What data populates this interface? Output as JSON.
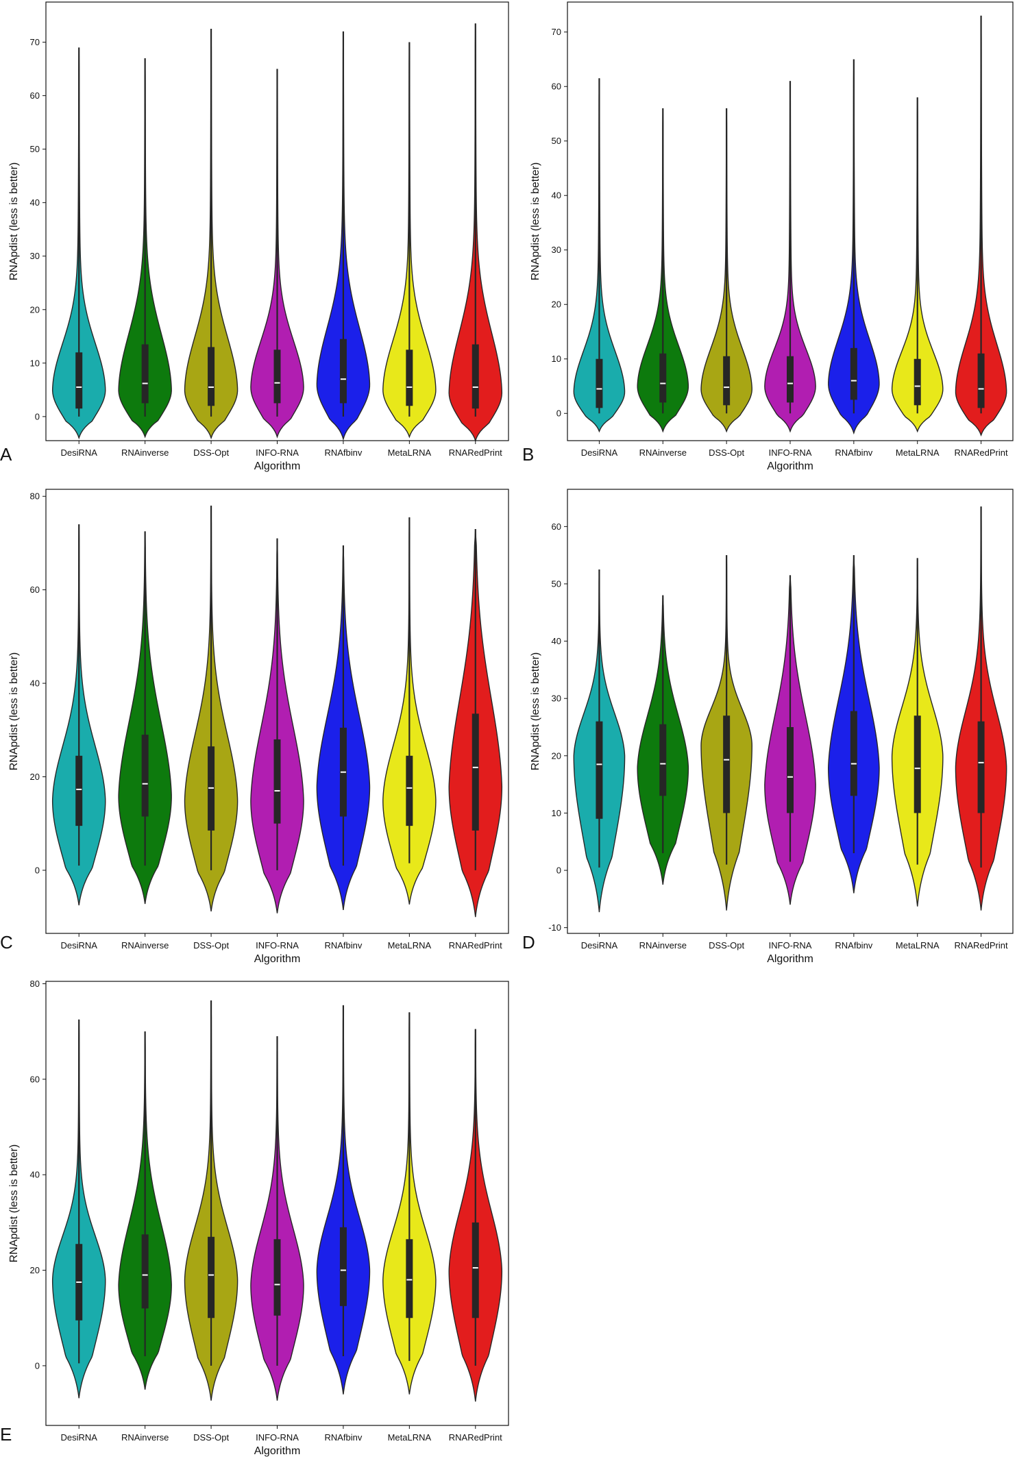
{
  "chart_data": [
    {
      "type": "violin",
      "panel_label": "A",
      "xlabel": "Algorithm",
      "ylabel": "RNApdist (less is better)",
      "ylim": [
        -4.5,
        77.5
      ],
      "yticks": [
        0,
        10,
        20,
        30,
        40,
        50,
        60,
        70
      ],
      "grid": false,
      "categories": [
        "DesiRNA",
        "RNAinverse",
        "DSS-Opt",
        "INFO-RNA",
        "RNAfbinv",
        "MetaLRNA",
        "RNARedPrint"
      ],
      "colors": [
        "#1aacac",
        "#0d7a0d",
        "#a8a614",
        "#b11eb1",
        "#1b20ea",
        "#e8e81a",
        "#e21d1d"
      ],
      "violins": [
        {
          "min": -4.0,
          "max": 69.0,
          "mode": 5.0,
          "q1": 1.5,
          "median": 5.5,
          "q3": 12.0,
          "whisker_low": 0.0,
          "whisker_high": 69.0
        },
        {
          "min": -3.8,
          "max": 67.0,
          "mode": 5.0,
          "q1": 2.5,
          "median": 6.2,
          "q3": 13.5,
          "whisker_low": 0.0,
          "whisker_high": 67.0
        },
        {
          "min": -4.0,
          "max": 72.5,
          "mode": 5.0,
          "q1": 2.0,
          "median": 5.5,
          "q3": 13.0,
          "whisker_low": 0.0,
          "whisker_high": 72.5
        },
        {
          "min": -3.8,
          "max": 65.0,
          "mode": 5.5,
          "q1": 2.5,
          "median": 6.3,
          "q3": 12.5,
          "whisker_low": 0.0,
          "whisker_high": 65.0
        },
        {
          "min": -4.2,
          "max": 72.0,
          "mode": 6.0,
          "q1": 2.5,
          "median": 7.0,
          "q3": 14.5,
          "whisker_low": 0.0,
          "whisker_high": 72.0
        },
        {
          "min": -3.8,
          "max": 70.0,
          "mode": 5.0,
          "q1": 2.0,
          "median": 5.5,
          "q3": 12.5,
          "whisker_low": 0.0,
          "whisker_high": 70.0
        },
        {
          "min": -4.5,
          "max": 73.5,
          "mode": 4.5,
          "q1": 1.5,
          "median": 5.5,
          "q3": 13.5,
          "whisker_low": 0.0,
          "whisker_high": 73.5
        }
      ]
    },
    {
      "type": "violin",
      "panel_label": "B",
      "xlabel": "Algorithm",
      "ylabel": "RNApdist (less is better)",
      "ylim": [
        -5.0,
        75.5
      ],
      "yticks": [
        0,
        10,
        20,
        30,
        40,
        50,
        60,
        70
      ],
      "grid": false,
      "categories": [
        "DesiRNA",
        "RNAinverse",
        "DSS-Opt",
        "INFO-RNA",
        "RNAfbinv",
        "MetaLRNA",
        "RNARedPrint"
      ],
      "colors": [
        "#1aacac",
        "#0d7a0d",
        "#a8a614",
        "#b11eb1",
        "#1b20ea",
        "#e8e81a",
        "#e21d1d"
      ],
      "violins": [
        {
          "min": -3.3,
          "max": 61.5,
          "mode": 4.0,
          "q1": 1.0,
          "median": 4.5,
          "q3": 10.0,
          "whisker_low": 0.0,
          "whisker_high": 61.5
        },
        {
          "min": -3.3,
          "max": 56.0,
          "mode": 5.0,
          "q1": 2.0,
          "median": 5.5,
          "q3": 11.0,
          "whisker_low": 0.0,
          "whisker_high": 56.0
        },
        {
          "min": -3.3,
          "max": 56.0,
          "mode": 4.5,
          "q1": 1.5,
          "median": 4.8,
          "q3": 10.5,
          "whisker_low": 0.0,
          "whisker_high": 56.0
        },
        {
          "min": -3.3,
          "max": 61.0,
          "mode": 5.0,
          "q1": 2.0,
          "median": 5.5,
          "q3": 10.5,
          "whisker_low": 0.0,
          "whisker_high": 61.0
        },
        {
          "min": -3.6,
          "max": 65.0,
          "mode": 5.5,
          "q1": 2.5,
          "median": 6.0,
          "q3": 12.0,
          "whisker_low": 0.0,
          "whisker_high": 65.0
        },
        {
          "min": -3.3,
          "max": 58.0,
          "mode": 4.5,
          "q1": 1.5,
          "median": 5.0,
          "q3": 10.0,
          "whisker_low": 0.0,
          "whisker_high": 58.0
        },
        {
          "min": -4.0,
          "max": 73.0,
          "mode": 4.0,
          "q1": 1.0,
          "median": 4.5,
          "q3": 11.0,
          "whisker_low": 0.0,
          "whisker_high": 73.0
        }
      ]
    },
    {
      "type": "violin",
      "panel_label": "C",
      "xlabel": "Algorithm",
      "ylabel": "RNApdist (less is better)",
      "ylim": [
        -13.5,
        81.5
      ],
      "yticks": [
        0,
        20,
        40,
        60,
        80
      ],
      "grid": false,
      "categories": [
        "DesiRNA",
        "RNAinverse",
        "DSS-Opt",
        "INFO-RNA",
        "RNAfbinv",
        "MetaLRNA",
        "RNARedPrint"
      ],
      "colors": [
        "#1aacac",
        "#0d7a0d",
        "#a8a614",
        "#b11eb1",
        "#1b20ea",
        "#e8e81a",
        "#e21d1d"
      ],
      "violins": [
        {
          "min": -7.5,
          "max": 74.0,
          "mode": 15.0,
          "q1": 9.5,
          "median": 17.3,
          "q3": 24.5,
          "whisker_low": 1.0,
          "whisker_high": 74.0
        },
        {
          "min": -7.2,
          "max": 72.5,
          "mode": 16.0,
          "q1": 11.5,
          "median": 18.5,
          "q3": 29.0,
          "whisker_low": 1.0,
          "whisker_high": 72.5
        },
        {
          "min": -8.8,
          "max": 78.0,
          "mode": 15.0,
          "q1": 8.5,
          "median": 17.6,
          "q3": 26.5,
          "whisker_low": 0.0,
          "whisker_high": 78.0
        },
        {
          "min": -9.2,
          "max": 71.0,
          "mode": 15.0,
          "q1": 10.0,
          "median": 17.0,
          "q3": 28.0,
          "whisker_low": 0.0,
          "whisker_high": 71.0
        },
        {
          "min": -8.5,
          "max": 69.5,
          "mode": 18.0,
          "q1": 11.5,
          "median": 21.0,
          "q3": 30.5,
          "whisker_low": 1.0,
          "whisker_high": 69.5
        },
        {
          "min": -7.3,
          "max": 75.5,
          "mode": 15.0,
          "q1": 9.5,
          "median": 17.6,
          "q3": 24.5,
          "whisker_low": 1.5,
          "whisker_high": 75.5
        },
        {
          "min": -10.0,
          "max": 73.0,
          "mode": 18.0,
          "q1": 8.5,
          "median": 22.0,
          "q3": 33.5,
          "whisker_low": 0.0,
          "whisker_high": 73.0
        }
      ]
    },
    {
      "type": "violin",
      "panel_label": "D",
      "xlabel": "Algorithm",
      "ylabel": "RNApdist (less is better)",
      "ylim": [
        -11.0,
        66.5
      ],
      "yticks": [
        -10,
        0,
        10,
        20,
        30,
        40,
        50,
        60
      ],
      "grid": false,
      "categories": [
        "DesiRNA",
        "RNAinverse",
        "DSS-Opt",
        "INFO-RNA",
        "RNAfbinv",
        "MetaLRNA",
        "RNARedPrint"
      ],
      "colors": [
        "#1aacac",
        "#0d7a0d",
        "#a8a614",
        "#b11eb1",
        "#1b20ea",
        "#e8e81a",
        "#e21d1d"
      ],
      "violins": [
        {
          "min": -7.3,
          "max": 52.5,
          "mode": 20.0,
          "q1": 9.0,
          "median": 18.5,
          "q3": 26.0,
          "whisker_low": 0.5,
          "whisker_high": 52.5
        },
        {
          "min": -2.5,
          "max": 48.0,
          "mode": 18.0,
          "q1": 13.0,
          "median": 18.6,
          "q3": 25.5,
          "whisker_low": 3.0,
          "whisker_high": 48.0
        },
        {
          "min": -7.0,
          "max": 55.0,
          "mode": 22.0,
          "q1": 10.0,
          "median": 19.3,
          "q3": 27.0,
          "whisker_low": 1.0,
          "whisker_high": 55.0
        },
        {
          "min": -6.0,
          "max": 51.5,
          "mode": 15.0,
          "q1": 10.0,
          "median": 16.3,
          "q3": 25.0,
          "whisker_low": 1.5,
          "whisker_high": 51.5
        },
        {
          "min": -4.0,
          "max": 55.0,
          "mode": 18.0,
          "q1": 13.0,
          "median": 18.6,
          "q3": 27.8,
          "whisker_low": 3.0,
          "whisker_high": 55.0
        },
        {
          "min": -6.3,
          "max": 54.5,
          "mode": 20.0,
          "q1": 10.0,
          "median": 17.8,
          "q3": 27.0,
          "whisker_low": 1.0,
          "whisker_high": 54.5
        },
        {
          "min": -7.0,
          "max": 63.5,
          "mode": 18.0,
          "q1": 10.0,
          "median": 18.8,
          "q3": 26.0,
          "whisker_low": 0.5,
          "whisker_high": 63.5
        }
      ]
    },
    {
      "type": "violin",
      "panel_label": "E",
      "xlabel": "Algorithm",
      "ylabel": "RNApdist (less is better)",
      "ylim": [
        -12.5,
        80.5
      ],
      "yticks": [
        0,
        20,
        40,
        60,
        80
      ],
      "grid": false,
      "categories": [
        "DesiRNA",
        "RNAinverse",
        "DSS-Opt",
        "INFO-RNA",
        "RNAfbinv",
        "MetaLRNA",
        "RNARedPrint"
      ],
      "colors": [
        "#1aacac",
        "#0d7a0d",
        "#a8a614",
        "#b11eb1",
        "#1b20ea",
        "#e8e81a",
        "#e21d1d"
      ],
      "violins": [
        {
          "min": -6.8,
          "max": 72.5,
          "mode": 18.0,
          "q1": 9.5,
          "median": 17.5,
          "q3": 25.5,
          "whisker_low": 0.5,
          "whisker_high": 72.5
        },
        {
          "min": -5.0,
          "max": 70.0,
          "mode": 17.0,
          "q1": 12.0,
          "median": 19.0,
          "q3": 27.5,
          "whisker_low": 2.0,
          "whisker_high": 70.0
        },
        {
          "min": -7.3,
          "max": 76.5,
          "mode": 18.0,
          "q1": 10.0,
          "median": 19.0,
          "q3": 27.0,
          "whisker_low": 0.0,
          "whisker_high": 76.5
        },
        {
          "min": -7.3,
          "max": 69.0,
          "mode": 17.0,
          "q1": 10.5,
          "median": 17.0,
          "q3": 26.5,
          "whisker_low": 0.0,
          "whisker_high": 69.0
        },
        {
          "min": -6.0,
          "max": 75.5,
          "mode": 20.0,
          "q1": 12.5,
          "median": 20.0,
          "q3": 29.0,
          "whisker_low": 2.0,
          "whisker_high": 75.5
        },
        {
          "min": -6.0,
          "max": 74.0,
          "mode": 18.0,
          "q1": 10.0,
          "median": 18.0,
          "q3": 26.5,
          "whisker_low": 1.0,
          "whisker_high": 74.0
        },
        {
          "min": -7.5,
          "max": 70.5,
          "mode": 20.0,
          "q1": 10.0,
          "median": 20.5,
          "q3": 30.0,
          "whisker_low": 0.0,
          "whisker_high": 70.5
        }
      ]
    }
  ]
}
